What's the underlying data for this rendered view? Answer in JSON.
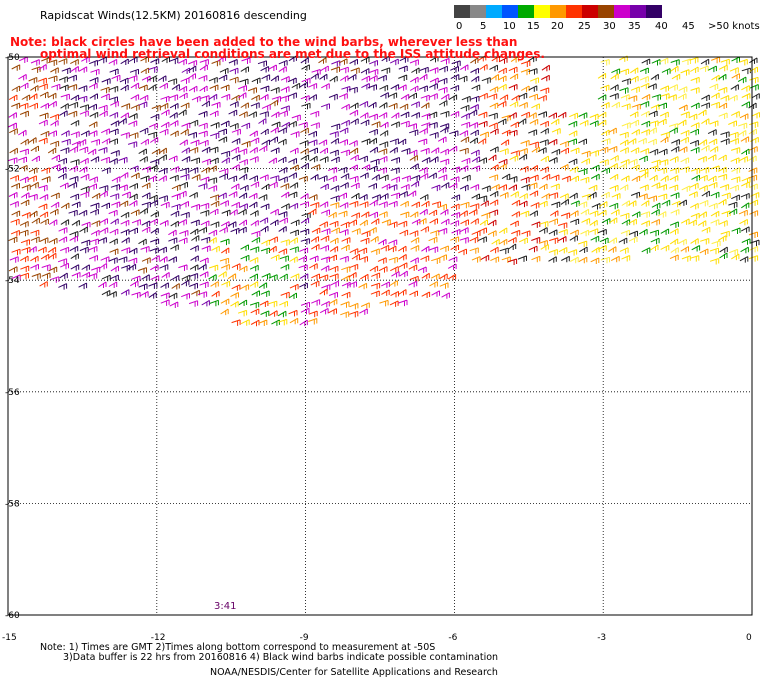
{
  "title": "Rapidscat Winds(12.5KM) 20160816 descending",
  "note_line1": "Note: black circles have been added to the wind barbs, wherever less than",
  "note_line2": "optimal wind retrieval conditions are met due to the ISS attitude changes.",
  "legend": {
    "labels": [
      "0",
      "5",
      "10",
      "15",
      "20",
      "25",
      "30",
      "35",
      "40",
      "45",
      ">50 knots"
    ],
    "colors": [
      "#444444",
      "#888888",
      "#00aaff",
      "#0055ff",
      "#00aa00",
      "#ffff00",
      "#ff9900",
      "#ff3300",
      "#cc0000",
      "#994400",
      "#cc00cc",
      "#7700aa",
      "#330066"
    ]
  },
  "map": {
    "lat_labels": [
      "-50",
      "-52",
      "-54",
      "-56",
      "-58",
      "-60"
    ],
    "lon_labels": [
      "-15",
      "-12",
      "-9",
      "-6",
      "-3",
      "0"
    ],
    "lat_values": [
      -50,
      -52,
      -54,
      -56,
      -58,
      -60
    ],
    "lon_values": [
      -15,
      -12,
      -9,
      -6,
      -3,
      0
    ]
  },
  "timestamp": "3:41",
  "footnote_line1": "Note: 1) Times are GMT 2)Times along bottom correspond to measurement at -50S",
  "footnote_line2": "3)Data buffer is 22 hrs from 20160816 4) Black wind barbs indicate possible contamination",
  "credit": "NOAA/NESDIS/Center for Satellite Applications and Research"
}
